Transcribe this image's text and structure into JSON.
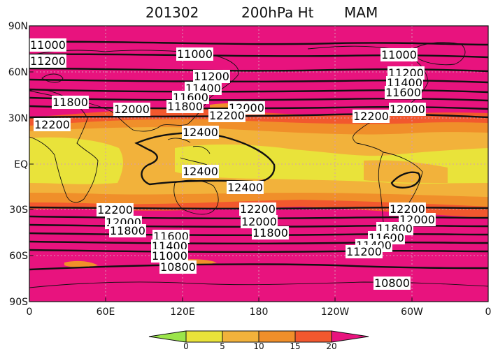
{
  "title": {
    "date": "201302",
    "field": "200hPa Ht",
    "season": "MAM"
  },
  "map": {
    "type": "global lat-lon shaded map with contours",
    "shading_colors": {
      "background": "#e8137e",
      "band_orange": "#f08f2a",
      "band_lightorange": "#f2b23b",
      "band_yellow": "#e9e33a",
      "orange_red": "#f2582e"
    },
    "lat_labels": [
      "90N",
      "60N",
      "30N",
      "EQ",
      "30S",
      "60S",
      "90S"
    ],
    "lon_labels": [
      "0",
      "60E",
      "120E",
      "180",
      "120W",
      "60W",
      "0"
    ]
  },
  "contours": [
    {
      "label": "11000"
    },
    {
      "label": "11200"
    },
    {
      "label": "11000"
    },
    {
      "label": "11200"
    },
    {
      "label": "11400"
    },
    {
      "label": "11600"
    },
    {
      "label": "11800"
    },
    {
      "label": "12000"
    },
    {
      "label": "11000"
    },
    {
      "label": "11200"
    },
    {
      "label": "11400"
    },
    {
      "label": "11600"
    },
    {
      "label": "11800"
    },
    {
      "label": "12000"
    },
    {
      "label": "12000"
    },
    {
      "label": "12200"
    },
    {
      "label": "12200"
    },
    {
      "label": "12200"
    },
    {
      "label": "12400"
    },
    {
      "label": "12400"
    },
    {
      "label": "12400"
    },
    {
      "label": "12200"
    },
    {
      "label": "12200"
    },
    {
      "label": "12200"
    },
    {
      "label": "12000"
    },
    {
      "label": "12000"
    },
    {
      "label": "12000"
    },
    {
      "label": "11800"
    },
    {
      "label": "11800"
    },
    {
      "label": "11800"
    },
    {
      "label": "11600"
    },
    {
      "label": "11600"
    },
    {
      "label": "11400"
    },
    {
      "label": "11400"
    },
    {
      "label": "11000"
    },
    {
      "label": "11200"
    },
    {
      "label": "10800"
    },
    {
      "label": "10800"
    }
  ],
  "colorbar": {
    "ticks": [
      "0",
      "5",
      "10",
      "15",
      "20"
    ],
    "colors": [
      "#9be54a",
      "#e9e33a",
      "#f2b23b",
      "#f08f2a",
      "#f2582e",
      "#e8137e"
    ]
  }
}
